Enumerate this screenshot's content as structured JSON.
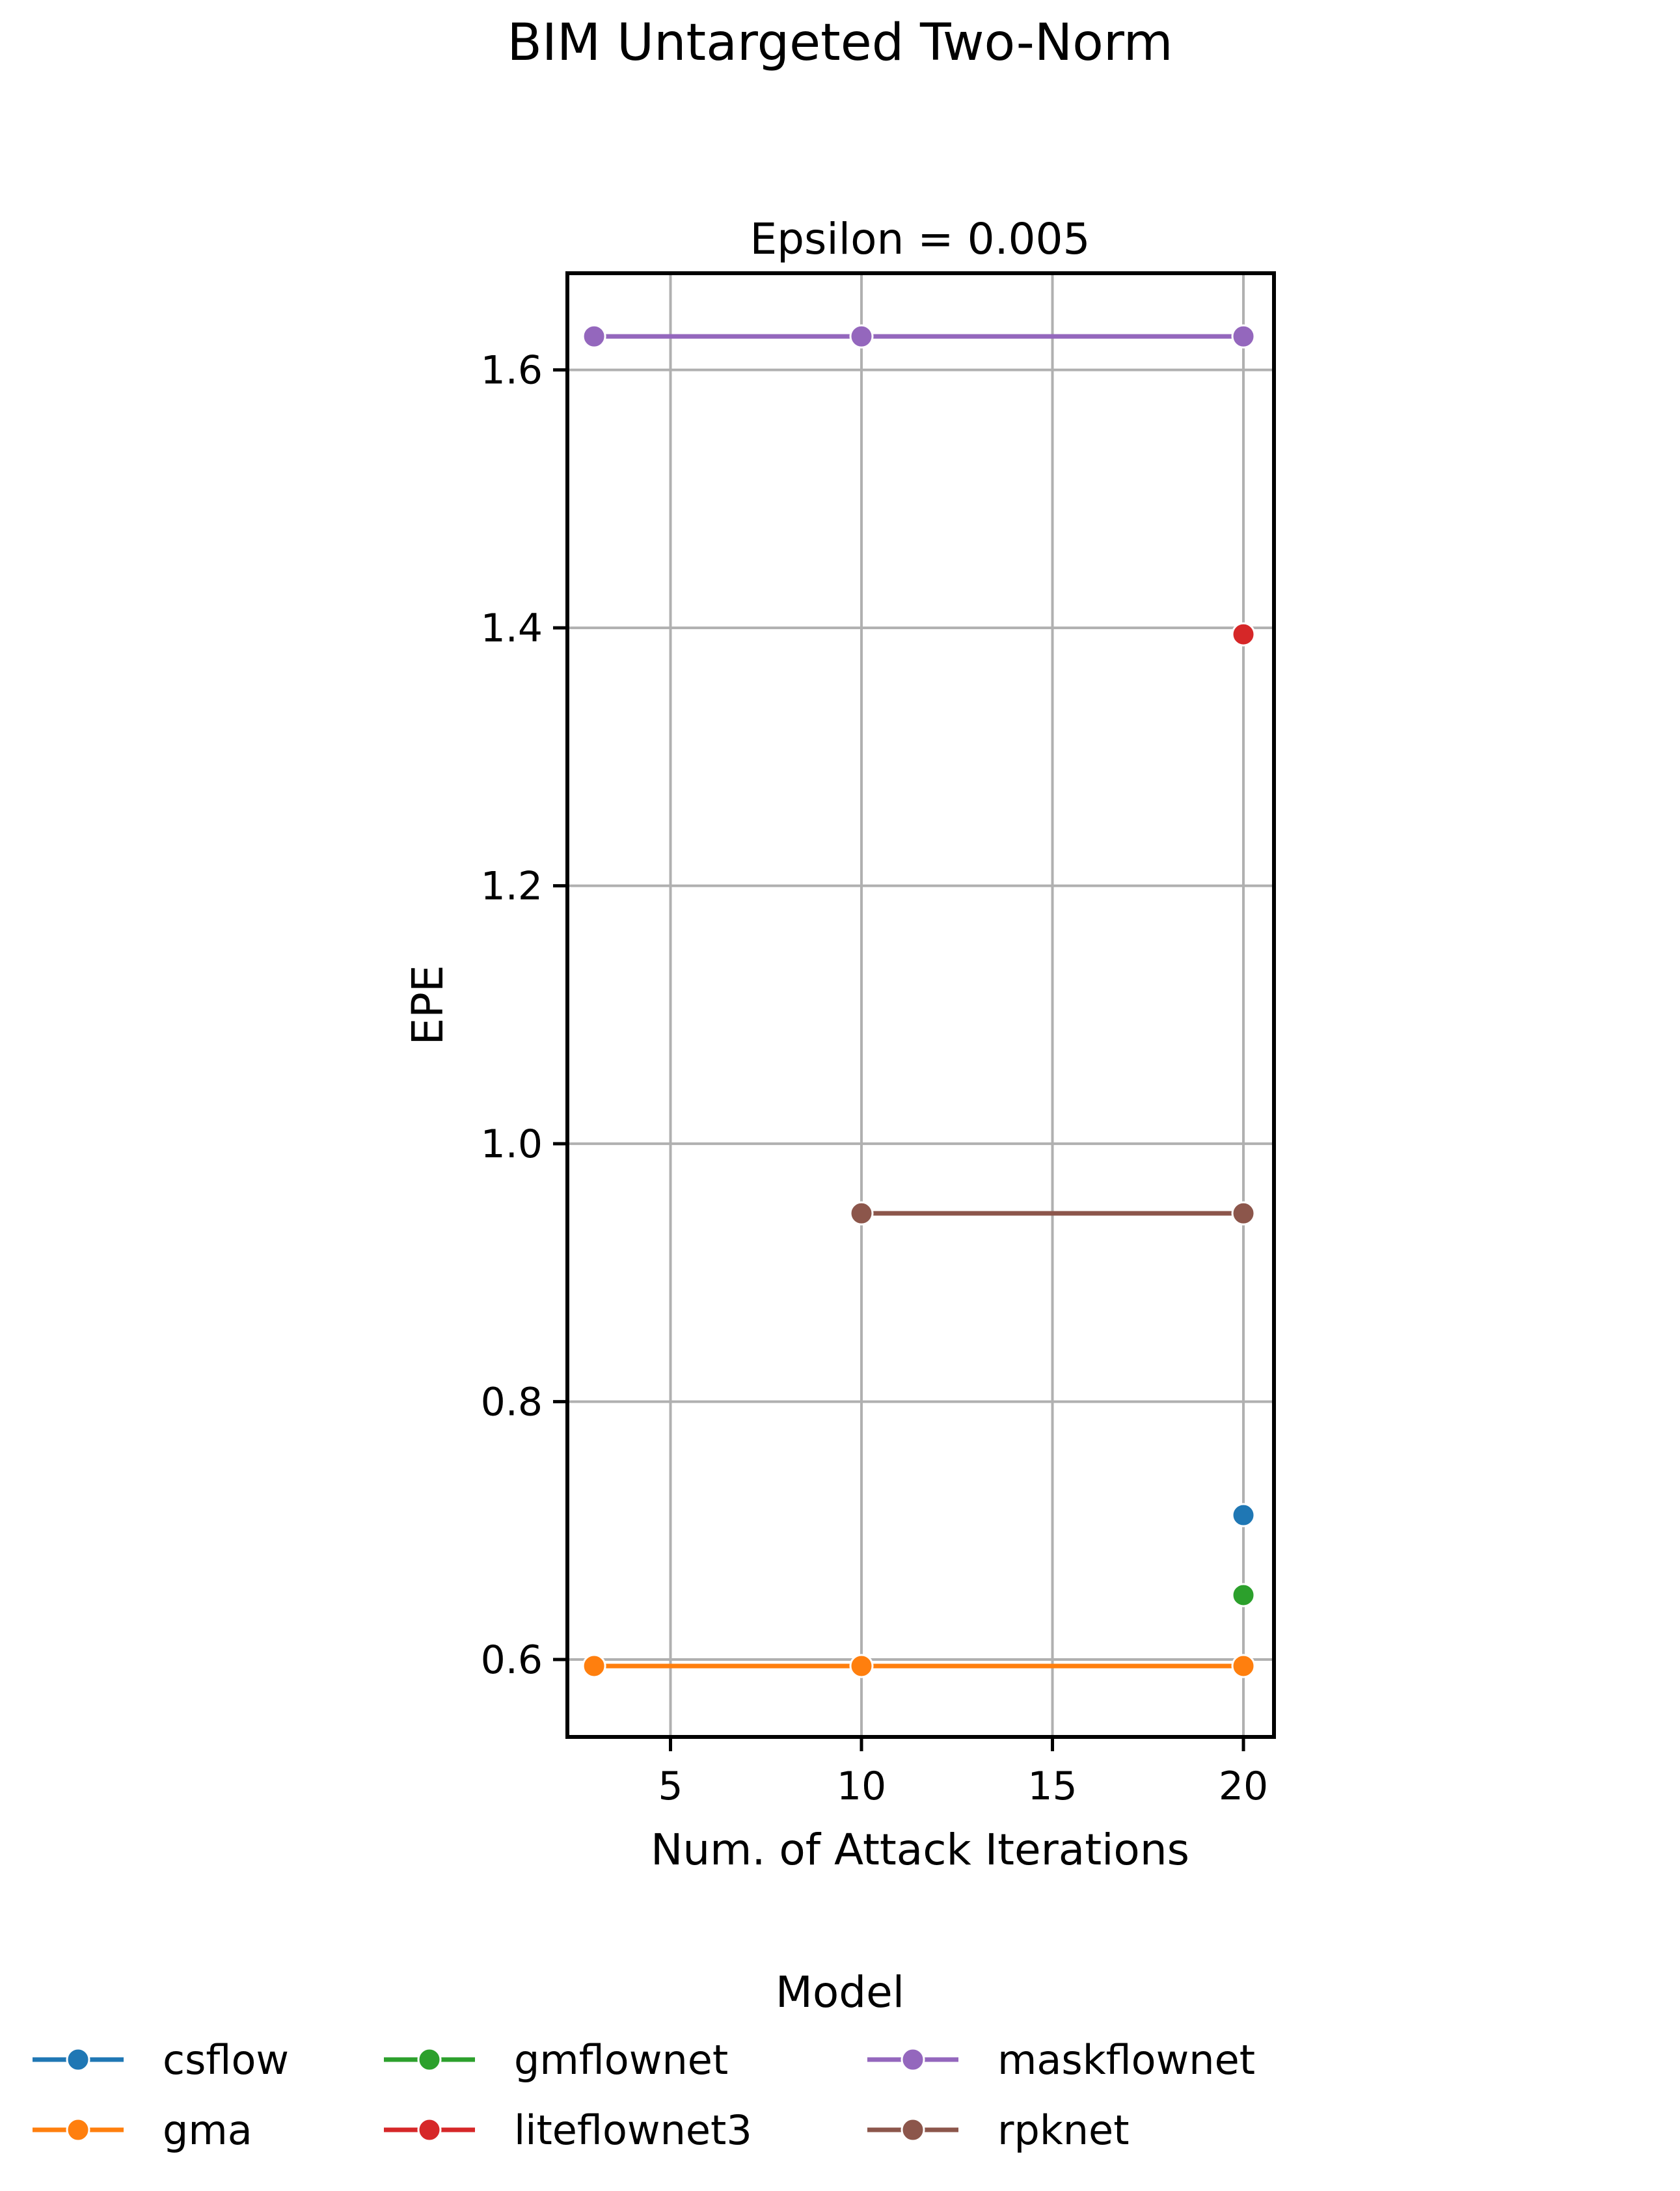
{
  "figure": {
    "suptitle": "BIM Untargeted Two-Norm"
  },
  "legend": {
    "title": "Model",
    "placement": "bottom-center",
    "columns": 4
  },
  "chart_data": {
    "type": "line",
    "title": "Epsilon = 0.005",
    "xlabel": "Num. of Attack Iterations",
    "ylabel": "EPE",
    "xlim": [
      2.3,
      20.8
    ],
    "ylim": [
      0.54,
      1.675
    ],
    "xticks": [
      5,
      10,
      15,
      20
    ],
    "yticks": [
      0.6,
      0.8,
      1.0,
      1.2,
      1.4,
      1.6
    ],
    "xtick_labels": [
      "5",
      "10",
      "15",
      "20"
    ],
    "ytick_labels": [
      "0.6",
      "0.8",
      "1.0",
      "1.2",
      "1.4",
      "1.6"
    ],
    "grid": true,
    "series": [
      {
        "name": "csflow",
        "color": "#1f77b4",
        "x": [
          20
        ],
        "y": [
          0.712
        ]
      },
      {
        "name": "gma",
        "color": "#ff7f0e",
        "x": [
          3,
          10,
          20
        ],
        "y": [
          0.595,
          0.595,
          0.595
        ]
      },
      {
        "name": "gmflownet",
        "color": "#2ca02c",
        "x": [
          20
        ],
        "y": [
          0.65
        ]
      },
      {
        "name": "liteflownet3",
        "color": "#d62728",
        "x": [
          20
        ],
        "y": [
          1.395
        ]
      },
      {
        "name": "maskflownet",
        "color": "#9467bd",
        "x": [
          3,
          10,
          20
        ],
        "y": [
          1.626,
          1.626,
          1.626
        ]
      },
      {
        "name": "rpknet",
        "color": "#8c564b",
        "x": [
          10,
          20
        ],
        "y": [
          0.946,
          0.946
        ]
      }
    ]
  }
}
